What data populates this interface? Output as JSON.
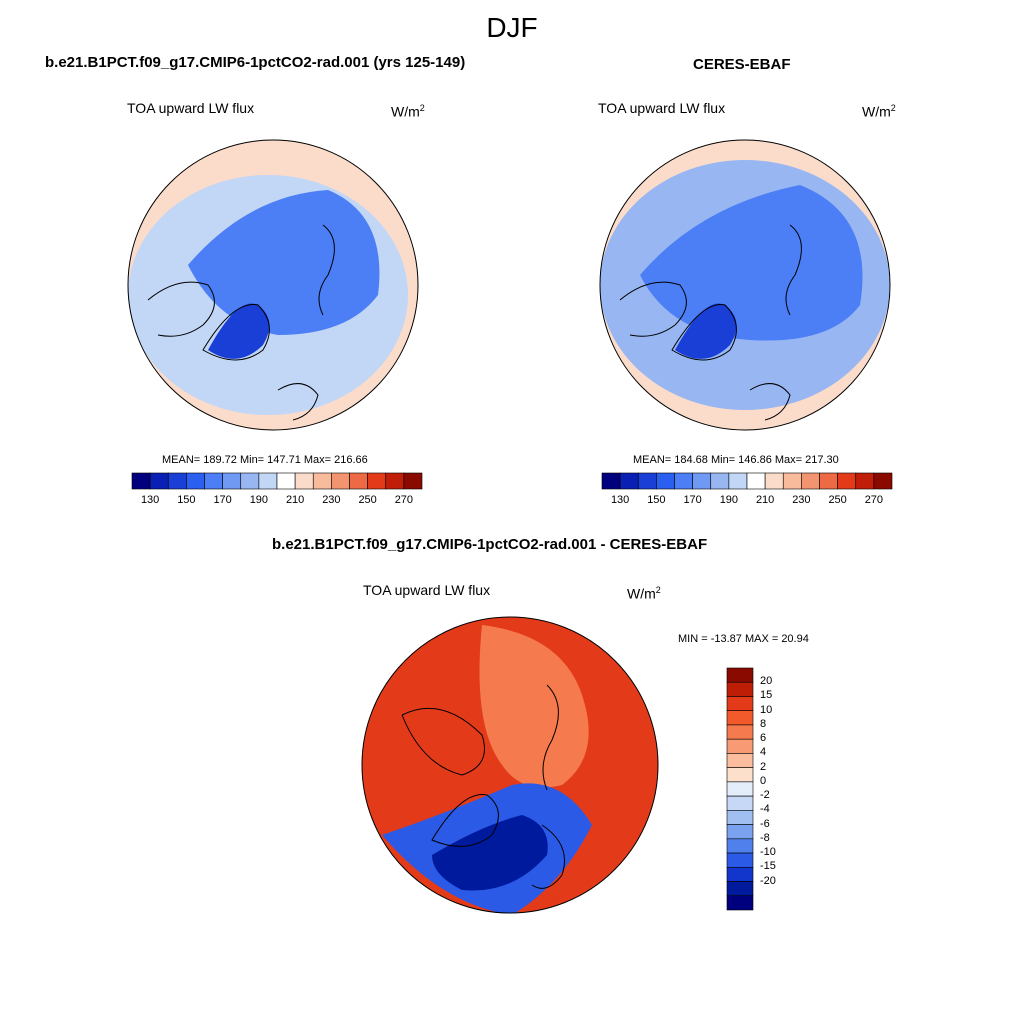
{
  "season": "DJF",
  "panels": {
    "model": {
      "title": "b.e21.B1PCT.f09_g17.CMIP6-1pctCO2-rad.001 (yrs 125-149)",
      "variable": "TOA upward LW flux",
      "units_base": "W/m",
      "units_exp": "2",
      "stats": "MEAN= 189.72  Min= 147.71  Max= 216.66"
    },
    "obs": {
      "title": "CERES-EBAF",
      "variable": "TOA upward LW flux",
      "units_base": "W/m",
      "units_exp": "2",
      "stats": "MEAN= 184.68  Min= 146.86  Max= 217.30"
    },
    "diff": {
      "title": "b.e21.B1PCT.f09_g17.CMIP6-1pctCO2-rad.001 - CERES-EBAF",
      "variable": "TOA upward LW flux",
      "units_base": "W/m",
      "units_exp": "2",
      "stats": "MIN = -13.87 MAX =  20.94"
    }
  },
  "colorbars": {
    "abs": {
      "colors": [
        "#00007f",
        "#0a1fb4",
        "#1a3fd6",
        "#2b5ff0",
        "#4c7ef5",
        "#7099f3",
        "#97b6f2",
        "#c2d6f6",
        "#ffffff",
        "#fbdccb",
        "#f8bb9b",
        "#f39470",
        "#ee6a45",
        "#e33b1a",
        "#c01e08",
        "#8a0a00"
      ],
      "labels": [
        "130",
        "150",
        "170",
        "190",
        "210",
        "230",
        "250",
        "270"
      ]
    },
    "diff": {
      "colors": [
        "#8a0a00",
        "#bf1e06",
        "#e33b1a",
        "#f25a2b",
        "#f57a4d",
        "#f89a73",
        "#fbbd9d",
        "#fde0cc",
        "#e4eefb",
        "#c6d8f6",
        "#a2bff2",
        "#7aa2ef",
        "#5080ec",
        "#2b5ae6",
        "#1236cc",
        "#001a9e",
        "#00007f"
      ],
      "labels": [
        "20",
        "15",
        "10",
        "8",
        "6",
        "4",
        "2",
        "0",
        "-2",
        "-4",
        "-6",
        "-8",
        "-10",
        "-15",
        "-20"
      ]
    }
  },
  "maps": {
    "model": {
      "base_color": "#c2d6f6",
      "outer_color": "#fbdccb",
      "core_color": "#4c7ef5",
      "greenland_color": "#1a3fd6"
    },
    "obs": {
      "base_color": "#97b6f2",
      "outer_color": "#fbdccb",
      "core_color": "#4c7ef5",
      "greenland_color": "#1a3fd6"
    },
    "diff": {
      "base_color": "#e33b1a",
      "warm_color": "#f57a4d",
      "cool_color": "#2b5ae6",
      "deep_cool_color": "#001a9e"
    }
  }
}
